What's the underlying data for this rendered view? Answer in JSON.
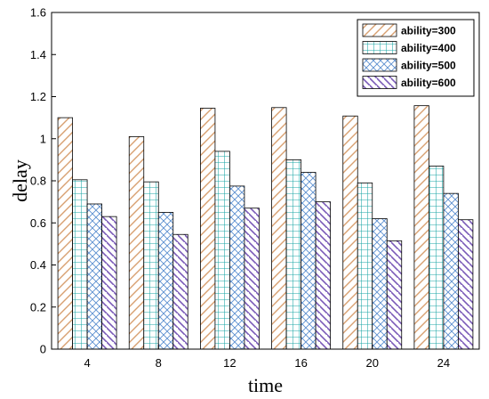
{
  "chart_data": {
    "type": "bar",
    "title": "",
    "xlabel": "time",
    "ylabel": "delay",
    "categories": [
      "4",
      "8",
      "12",
      "16",
      "20",
      "24"
    ],
    "ylim": [
      0,
      1.6
    ],
    "yticks": [
      "0",
      "0.2",
      "0.4",
      "0.6",
      "0.8",
      "1",
      "1.2",
      "1.4",
      "1.6"
    ],
    "grid": false,
    "legend_position": "top-right",
    "series": [
      {
        "name": "ability=300",
        "values": [
          1.1,
          1.01,
          1.145,
          1.148,
          1.108,
          1.157
        ],
        "color": "#d8a070",
        "pattern": "diagonal-forward"
      },
      {
        "name": "ability=400",
        "values": [
          0.805,
          0.795,
          0.94,
          0.9,
          0.79,
          0.87
        ],
        "color": "#1aa5a5",
        "pattern": "grid"
      },
      {
        "name": "ability=500",
        "values": [
          0.69,
          0.65,
          0.775,
          0.84,
          0.62,
          0.74
        ],
        "color": "#5b8fd0",
        "pattern": "crosshatch"
      },
      {
        "name": "ability=600",
        "values": [
          0.63,
          0.545,
          0.67,
          0.7,
          0.515,
          0.615
        ],
        "color": "#7a5ab8",
        "pattern": "diagonal-back"
      }
    ]
  }
}
